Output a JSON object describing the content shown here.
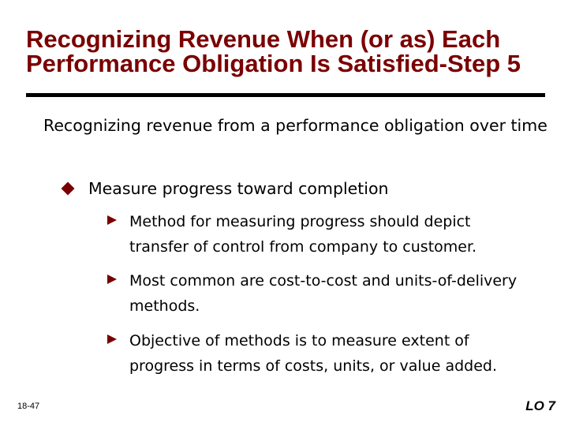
{
  "slide": {
    "title": "Recognizing Revenue When (or as) Each Performance Obligation Is Satisfied-Step 5",
    "main_point": "Recognizing revenue from a performance obligation over time",
    "sub_point": "Measure progress toward completion",
    "bullets": [
      "Method for measuring progress should depict transfer of control from company to customer.",
      "Most common are cost-to-cost and units-of-delivery methods.",
      "Objective of methods is to measure extent of progress in terms of costs, units, or value added."
    ],
    "slide_number": "18-47",
    "learning_objective": "LO 7"
  },
  "colors": {
    "title": "#7a0000",
    "bullet_marker": "#7a0000",
    "rule": "#000000"
  },
  "icons": {
    "sub_marker": "diamond-icon",
    "bullet_marker": "triangle-right-icon"
  }
}
